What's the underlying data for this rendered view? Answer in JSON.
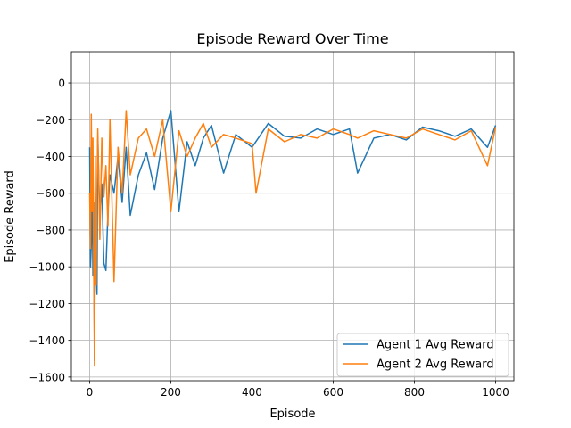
{
  "chart_data": {
    "type": "line",
    "title": "Episode Reward Over Time",
    "xlabel": "Episode",
    "ylabel": "Episode Reward",
    "xlim": [
      -45,
      1045
    ],
    "ylim": [
      -1620,
      170
    ],
    "x_ticks": [
      0,
      200,
      400,
      600,
      800,
      1000
    ],
    "y_ticks": [
      -1600,
      -1400,
      -1200,
      -1000,
      -800,
      -600,
      -400,
      -200,
      0
    ],
    "x_tick_labels": [
      "0",
      "200",
      "400",
      "600",
      "800",
      "1000"
    ],
    "y_tick_labels": [
      "−1600",
      "−1400",
      "−1200",
      "−1000",
      "−800",
      "−600",
      "−400",
      "−200",
      "0"
    ],
    "grid": true,
    "legend": "lower-right",
    "series": [
      {
        "name": "Agent 1 Avg Reward",
        "color": "#1f77b4",
        "x": [
          0,
          2,
          4,
          6,
          8,
          10,
          12,
          14,
          16,
          18,
          20,
          25,
          30,
          35,
          40,
          45,
          50,
          60,
          70,
          80,
          90,
          100,
          120,
          140,
          160,
          180,
          200,
          220,
          240,
          260,
          280,
          300,
          330,
          360,
          400,
          440,
          480,
          520,
          560,
          600,
          640,
          660,
          700,
          740,
          780,
          820,
          860,
          900,
          940,
          980,
          1000
        ],
        "values": [
          -350,
          -1000,
          -880,
          -420,
          -1050,
          -650,
          -1510,
          -800,
          -1000,
          -1150,
          -300,
          -750,
          -550,
          -980,
          -1020,
          -700,
          -500,
          -600,
          -400,
          -650,
          -350,
          -720,
          -500,
          -380,
          -580,
          -300,
          -150,
          -700,
          -320,
          -450,
          -300,
          -230,
          -490,
          -280,
          -350,
          -220,
          -290,
          -300,
          -250,
          -280,
          -250,
          -490,
          -300,
          -280,
          -310,
          -240,
          -260,
          -290,
          -250,
          -350,
          -230
        ]
      },
      {
        "name": "Agent 2 Avg Reward",
        "color": "#ff7f0e",
        "x": [
          0,
          2,
          4,
          6,
          8,
          10,
          12,
          14,
          16,
          18,
          20,
          25,
          30,
          35,
          40,
          45,
          50,
          60,
          70,
          80,
          90,
          100,
          120,
          140,
          160,
          180,
          200,
          220,
          240,
          260,
          280,
          300,
          330,
          360,
          400,
          410,
          440,
          480,
          520,
          560,
          600,
          640,
          660,
          700,
          740,
          780,
          820,
          860,
          900,
          940,
          980,
          1000
        ],
        "values": [
          -600,
          -900,
          -170,
          -700,
          -300,
          -1000,
          -1540,
          -400,
          -1100,
          -600,
          -250,
          -850,
          -300,
          -620,
          -450,
          -780,
          -200,
          -1080,
          -350,
          -600,
          -150,
          -500,
          -300,
          -250,
          -400,
          -200,
          -700,
          -260,
          -400,
          -300,
          -220,
          -350,
          -280,
          -300,
          -330,
          -600,
          -250,
          -320,
          -280,
          -300,
          -250,
          -280,
          -300,
          -260,
          -280,
          -300,
          -250,
          -280,
          -310,
          -260,
          -450,
          -240
        ]
      }
    ]
  }
}
